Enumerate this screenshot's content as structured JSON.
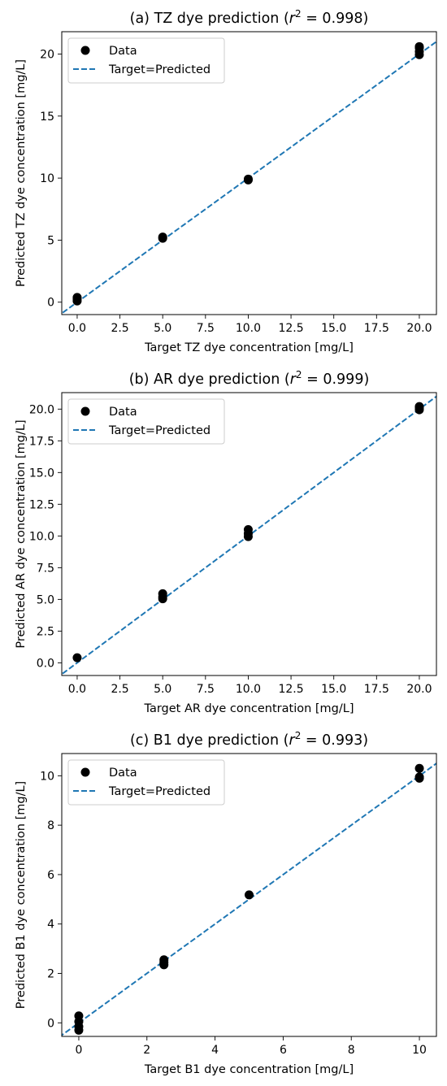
{
  "chart_data": [
    {
      "type": "scatter",
      "title_prefix": "(a) TZ dye prediction (",
      "title_r": "r",
      "title_exp": "2",
      "title_suffix": " = 0.998)",
      "xlabel": "Target TZ dye concentration [mg/L]",
      "ylabel": "Predicted TZ dye concentration [mg/L]",
      "xlim": [
        -0.9,
        21
      ],
      "ylim": [
        -1.0,
        21.8
      ],
      "xticks": [
        0,
        2.5,
        5,
        7.5,
        10,
        12.5,
        15,
        17.5,
        20
      ],
      "xtick_labels": [
        "0.0",
        "2.5",
        "5.0",
        "7.5",
        "10.0",
        "12.5",
        "15.0",
        "17.5",
        "20.0"
      ],
      "yticks": [
        0,
        5,
        10,
        15,
        20
      ],
      "ytick_labels": [
        "0",
        "5",
        "10",
        "15",
        "20"
      ],
      "legend": [
        "Data",
        "Target=Predicted"
      ],
      "legend_position": "upper-left",
      "points": [
        [
          0,
          0.1
        ],
        [
          0,
          0.25
        ],
        [
          0,
          0.38
        ],
        [
          5,
          5.15
        ],
        [
          5,
          5.25
        ],
        [
          10,
          9.85
        ],
        [
          10,
          9.92
        ],
        [
          20,
          19.95
        ],
        [
          20,
          20.2
        ],
        [
          20,
          20.5
        ],
        [
          20,
          20.6
        ]
      ],
      "colors": {
        "data": "#000000",
        "line": "#1f77b4"
      }
    },
    {
      "type": "scatter",
      "title_prefix": "(b) AR dye prediction (",
      "title_r": "r",
      "title_exp": "2",
      "title_suffix": " = 0.999)",
      "xlabel": "Target AR dye concentration [mg/L]",
      "ylabel": "Predicted AR dye concentration [mg/L]",
      "xlim": [
        -0.9,
        21
      ],
      "ylim": [
        -1.0,
        21.3
      ],
      "xticks": [
        0,
        2.5,
        5,
        7.5,
        10,
        12.5,
        15,
        17.5,
        20
      ],
      "xtick_labels": [
        "0.0",
        "2.5",
        "5.0",
        "7.5",
        "10.0",
        "12.5",
        "15.0",
        "17.5",
        "20.0"
      ],
      "yticks": [
        0,
        2.5,
        5,
        7.5,
        10,
        12.5,
        15,
        17.5,
        20
      ],
      "ytick_labels": [
        "0.0",
        "2.5",
        "5.0",
        "7.5",
        "10.0",
        "12.5",
        "15.0",
        "17.5",
        "20.0"
      ],
      "legend": [
        "Data",
        "Target=Predicted"
      ],
      "legend_position": "upper-left",
      "points": [
        [
          0,
          0.4
        ],
        [
          5,
          5.05
        ],
        [
          5,
          5.2
        ],
        [
          5,
          5.45
        ],
        [
          10,
          9.95
        ],
        [
          10,
          10.2
        ],
        [
          10,
          10.5
        ],
        [
          20,
          19.95
        ],
        [
          20,
          20.1
        ],
        [
          20,
          20.2
        ]
      ],
      "colors": {
        "data": "#000000",
        "line": "#1f77b4"
      }
    },
    {
      "type": "scatter",
      "title_prefix": "(c) B1 dye prediction (",
      "title_r": "r",
      "title_exp": "2",
      "title_suffix": " = 0.993)",
      "xlabel": "Target B1 dye concentration [mg/L]",
      "ylabel": "Predicted B1 dye concentration [mg/L]",
      "xlim": [
        -0.5,
        10.5
      ],
      "ylim": [
        -0.55,
        10.9
      ],
      "xticks": [
        0,
        2,
        4,
        6,
        8,
        10
      ],
      "xtick_labels": [
        "0",
        "2",
        "4",
        "6",
        "8",
        "10"
      ],
      "yticks": [
        0,
        2,
        4,
        6,
        8,
        10
      ],
      "ytick_labels": [
        "0",
        "2",
        "4",
        "6",
        "8",
        "10"
      ],
      "legend": [
        "Data",
        "Target=Predicted"
      ],
      "legend_position": "upper-left",
      "points": [
        [
          0,
          -0.3
        ],
        [
          0,
          -0.15
        ],
        [
          0,
          0.05
        ],
        [
          0,
          0.28
        ],
        [
          2.5,
          2.35
        ],
        [
          2.5,
          2.45
        ],
        [
          2.5,
          2.55
        ],
        [
          5,
          5.18
        ],
        [
          10,
          9.9
        ],
        [
          10,
          9.95
        ],
        [
          10,
          10.3
        ]
      ],
      "colors": {
        "data": "#000000",
        "line": "#1f77b4"
      }
    }
  ]
}
